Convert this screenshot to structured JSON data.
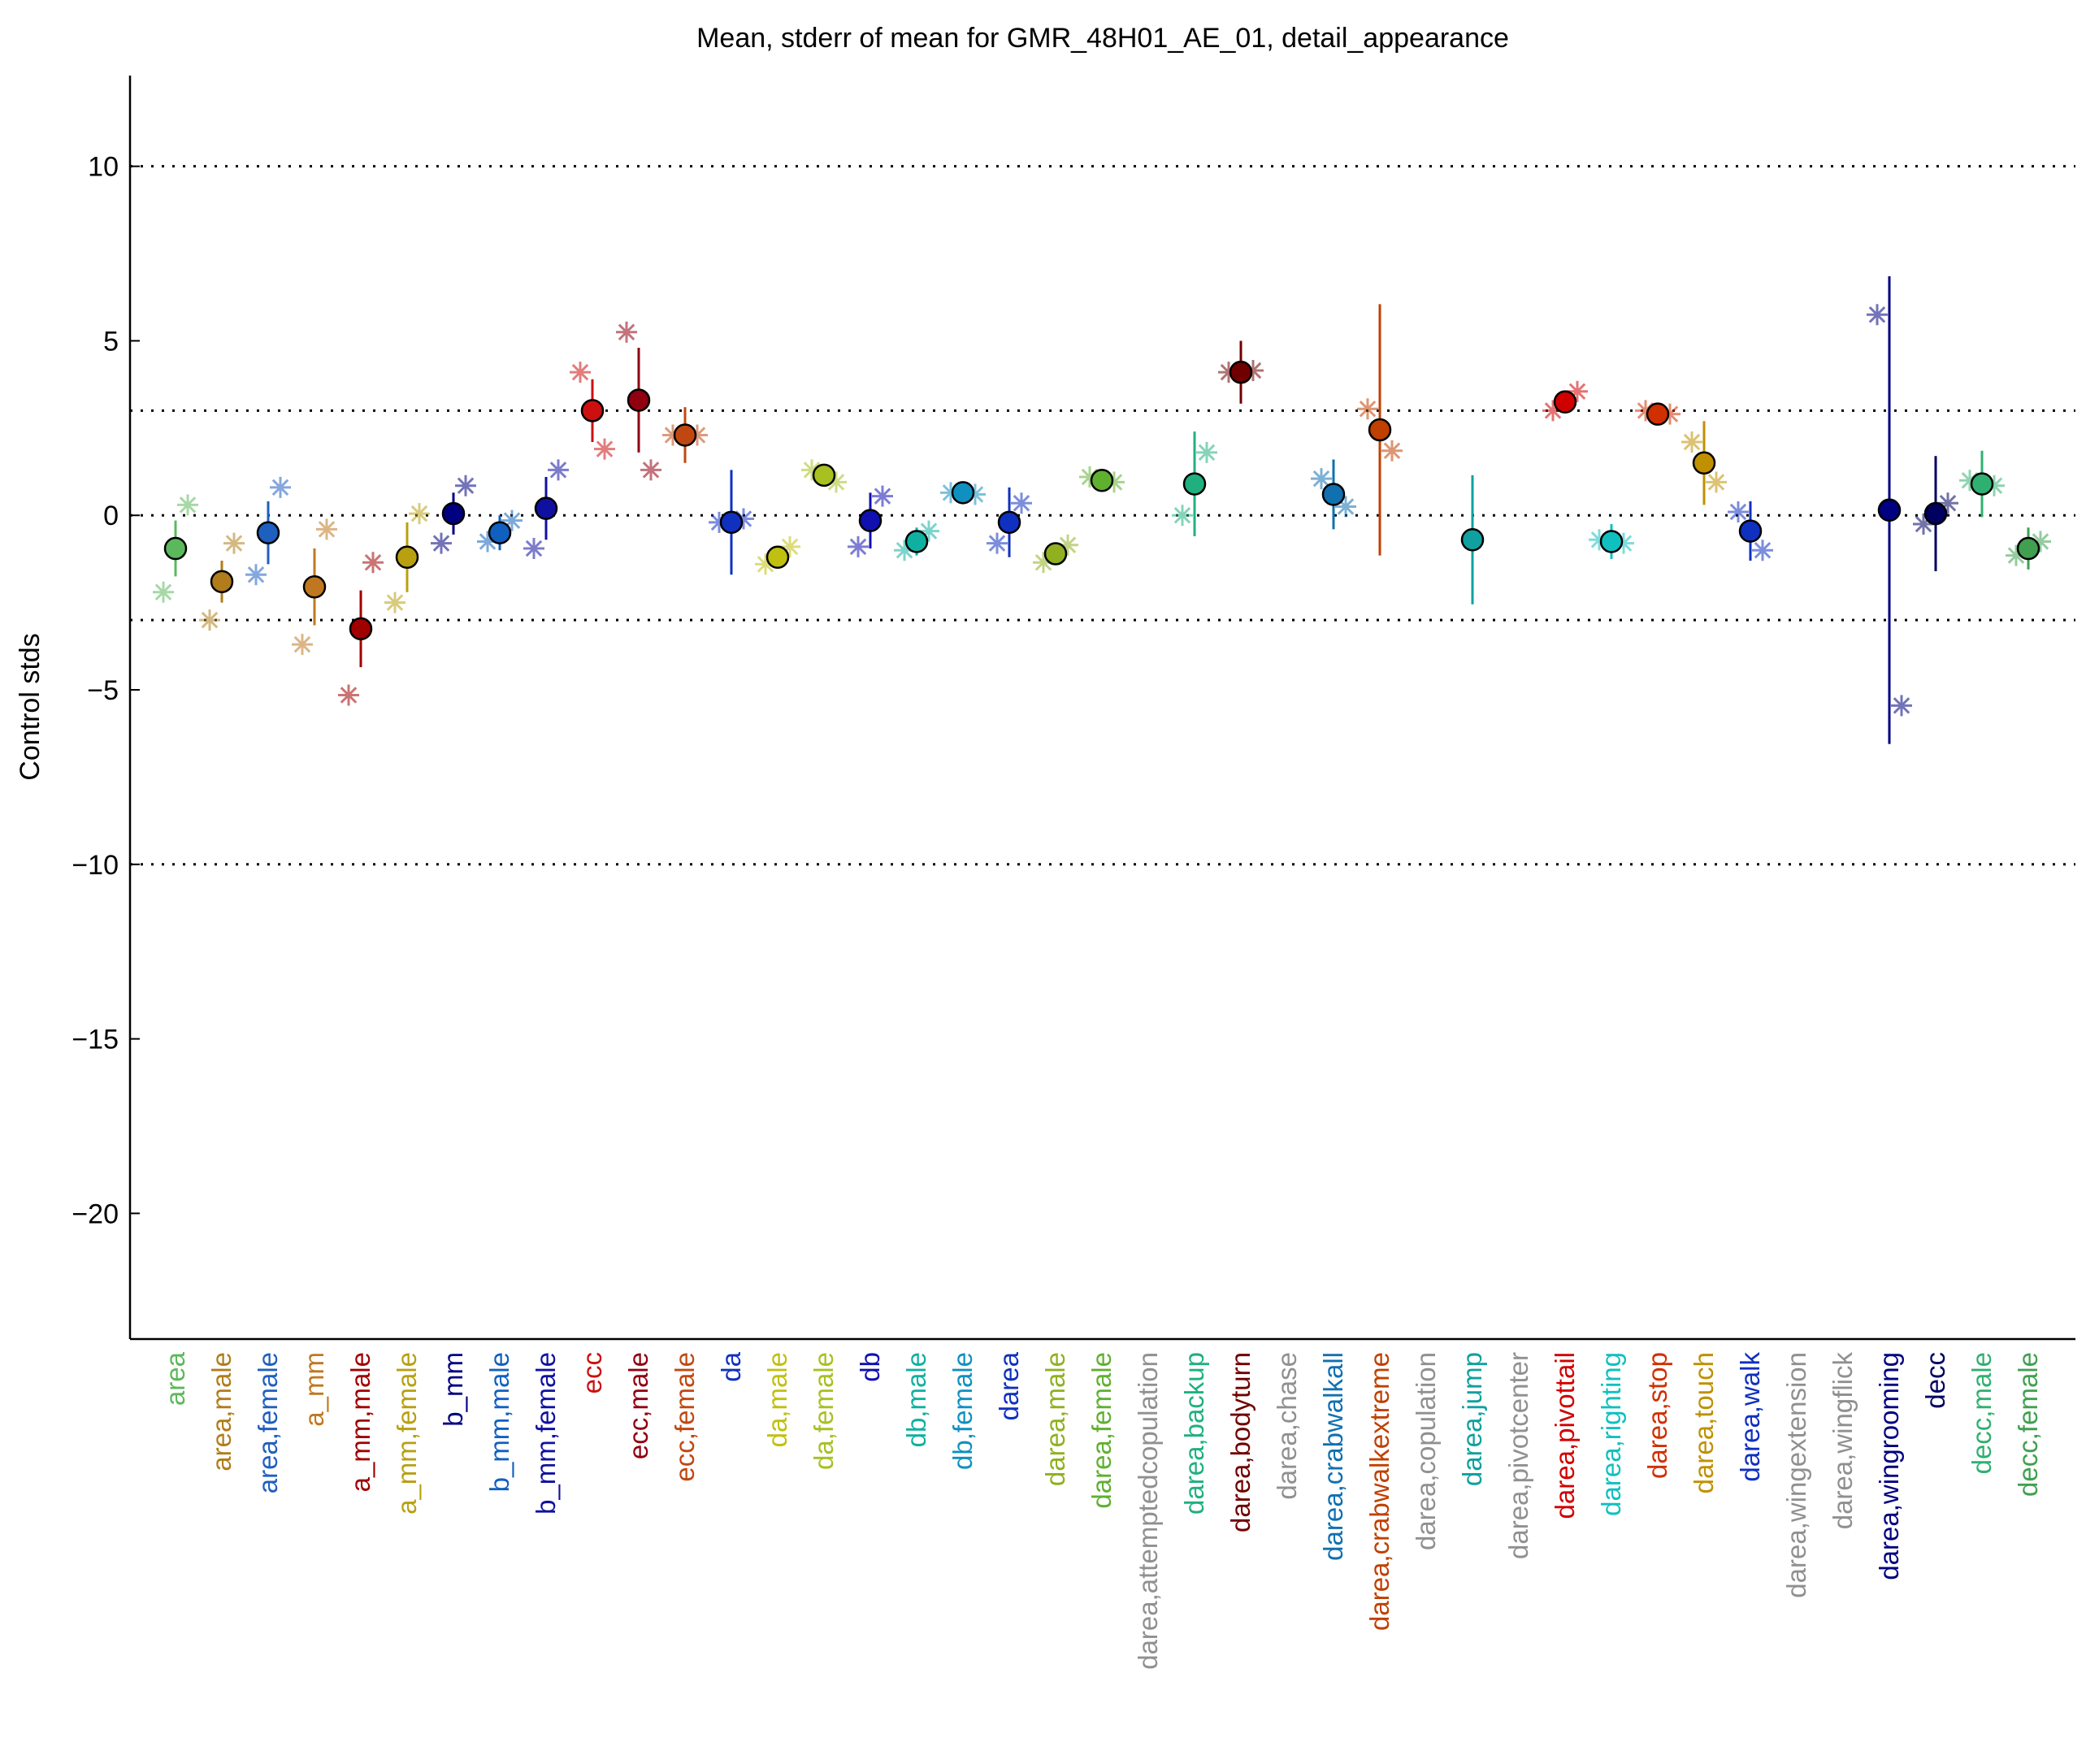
{
  "chart_data": {
    "type": "errorbar",
    "title": "Mean, stderr of mean for GMR_48H01_AE_01, detail_appearance",
    "ylabel": "Control stds",
    "categories": [
      "area",
      "area,male",
      "area,female",
      "a_mm",
      "a_mm,male",
      "a_mm,female",
      "b_mm",
      "b_mm,male",
      "b_mm,female",
      "ecc",
      "ecc,male",
      "ecc,female",
      "da",
      "da,male",
      "da,female",
      "db",
      "db,male",
      "db,female",
      "darea",
      "darea,male",
      "darea,female",
      "darea,attemptedcopulation",
      "darea,backup",
      "darea,bodyturn",
      "darea,chase",
      "darea,crabwalkall",
      "darea,crabwalkextreme",
      "darea,copulation",
      "darea,jump",
      "darea,pivotcenter",
      "darea,pivottail",
      "darea,righting",
      "darea,stop",
      "darea,touch",
      "darea,walk",
      "darea,wingextension",
      "darea,wingflick",
      "darea,wingrooming",
      "decc",
      "decc,male",
      "decc,female"
    ],
    "colors": [
      "#5cb85c",
      "#b07d1a",
      "#1f5fbf",
      "#c07820",
      "#a00000",
      "#b8a010",
      "#000080",
      "#1060c0",
      "#1010a0",
      "#cc1010",
      "#900010",
      "#c04810",
      "#1030c0",
      "#c0c010",
      "#a8c020",
      "#1010b0",
      "#10b0a0",
      "#1090c0",
      "#1030c0",
      "#90b020",
      "#60b030",
      "#909090",
      "#20b080",
      "#700000",
      "#909090",
      "#1070b0",
      "#c04000",
      "#909090",
      "#10a0a0",
      "#909090",
      "#d00000",
      "#10c0c0",
      "#d03000",
      "#c09000",
      "#1030c0",
      "#909090",
      "#909090",
      "#000080",
      "#000060",
      "#30b070",
      "#40a050"
    ],
    "values": [
      -0.95,
      -1.9,
      -0.5,
      -2.05,
      -3.25,
      -1.2,
      0.05,
      -0.5,
      0.2,
      3.0,
      3.3,
      2.3,
      -0.2,
      -1.2,
      1.15,
      -0.15,
      -0.75,
      0.65,
      -0.2,
      -1.1,
      1.0,
      null,
      0.9,
      4.1,
      null,
      0.6,
      2.45,
      null,
      -0.7,
      null,
      3.25,
      -0.75,
      2.9,
      1.5,
      -0.45,
      null,
      null,
      0.15,
      0.05,
      0.9,
      -0.95
    ],
    "errors": [
      0.8,
      0.6,
      0.9,
      1.1,
      1.1,
      1.0,
      0.6,
      0.5,
      0.9,
      0.9,
      1.5,
      0.8,
      1.5,
      0.2,
      0.2,
      0.8,
      0.4,
      0.2,
      1.0,
      0.2,
      0.2,
      null,
      1.5,
      0.9,
      null,
      1.0,
      3.6,
      null,
      1.85,
      null,
      0.3,
      0.5,
      0.2,
      1.2,
      0.85,
      null,
      null,
      6.7,
      1.65,
      0.95,
      0.6
    ],
    "left_stars": [
      -2.2,
      -3.0,
      -1.7,
      -3.7,
      -5.15,
      -2.5,
      -0.8,
      -0.75,
      -0.95,
      4.1,
      5.25,
      2.3,
      -0.2,
      -1.4,
      1.3,
      -0.9,
      -1.0,
      0.65,
      -0.8,
      -1.35,
      1.1,
      null,
      0.0,
      4.1,
      null,
      1.05,
      3.05,
      null,
      null,
      null,
      3.0,
      -0.7,
      3.0,
      2.1,
      0.1,
      null,
      null,
      5.75,
      -0.25,
      1.0,
      -1.15
    ],
    "right_stars": [
      0.3,
      -0.8,
      0.8,
      -0.4,
      -1.35,
      0.05,
      0.85,
      -0.15,
      1.3,
      1.9,
      1.3,
      2.3,
      -0.1,
      -0.9,
      0.95,
      0.55,
      -0.45,
      0.6,
      0.35,
      -0.85,
      0.95,
      null,
      1.8,
      4.15,
      null,
      0.25,
      1.85,
      null,
      null,
      null,
      3.55,
      -0.8,
      2.9,
      0.95,
      -1.0,
      null,
      null,
      -5.45,
      0.35,
      0.85,
      -0.75
    ],
    "ylim": [
      -23.6,
      12.6
    ],
    "yticks": [
      {
        "value": -20,
        "label": "−20"
      },
      {
        "value": -15,
        "label": "−15"
      },
      {
        "value": -10,
        "label": "−10"
      },
      {
        "value": -5,
        "label": "−5"
      },
      0,
      5,
      10
    ],
    "reference_lines": [
      -10,
      -3,
      0,
      3,
      10
    ]
  }
}
